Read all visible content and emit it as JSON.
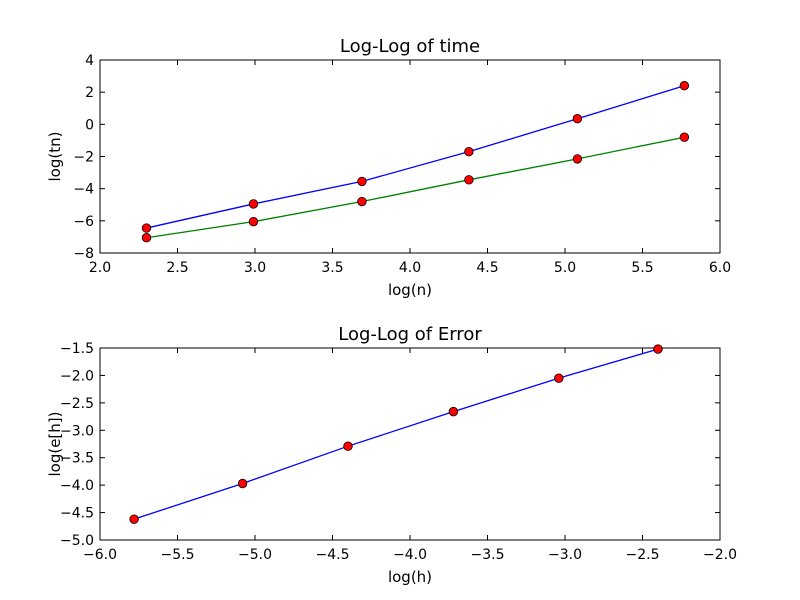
{
  "chart_data": [
    {
      "type": "line",
      "title": "Log-Log of time",
      "xlabel": "log(n)",
      "ylabel": "log(tn)",
      "xlim": [
        2.0,
        6.0
      ],
      "ylim": [
        -8,
        4
      ],
      "xticks": [
        "2.0",
        "2.5",
        "3.0",
        "3.5",
        "4.0",
        "4.5",
        "5.0",
        "5.5",
        "6.0"
      ],
      "yticks": [
        "−8",
        "−6",
        "−4",
        "−2",
        "0",
        "2",
        "4"
      ],
      "grid": false,
      "marker": "circle",
      "marker_color": "#ff0000",
      "series": [
        {
          "color": "#0000ff",
          "x": [
            2.3,
            2.99,
            3.69,
            4.38,
            5.08,
            5.77
          ],
          "y": [
            -6.45,
            -4.95,
            -3.55,
            -1.7,
            0.35,
            2.4
          ]
        },
        {
          "color": "#008000",
          "x": [
            2.3,
            2.99,
            3.69,
            4.38,
            5.08,
            5.77
          ],
          "y": [
            -7.05,
            -6.05,
            -4.8,
            -3.45,
            -2.15,
            -0.8
          ]
        }
      ]
    },
    {
      "type": "line",
      "title": "Log-Log of Error",
      "xlabel": "log(h)",
      "ylabel": "log(e[h])",
      "xlim": [
        -6.0,
        -2.0
      ],
      "ylim": [
        -5.0,
        -1.5
      ],
      "xticks": [
        "−6.0",
        "−5.5",
        "−5.0",
        "−4.5",
        "−4.0",
        "−3.5",
        "−3.0",
        "−2.5",
        "−2.0"
      ],
      "yticks": [
        "−5.0",
        "−4.5",
        "−4.0",
        "−3.5",
        "−3.0",
        "−2.5",
        "−2.0",
        "−1.5"
      ],
      "grid": false,
      "marker": "circle",
      "marker_color": "#ff0000",
      "series": [
        {
          "color": "#0000ff",
          "x": [
            -5.78,
            -5.08,
            -4.4,
            -3.72,
            -3.04,
            -2.4
          ],
          "y": [
            -4.62,
            -3.97,
            -3.29,
            -2.66,
            -2.05,
            -1.52
          ]
        }
      ]
    }
  ]
}
